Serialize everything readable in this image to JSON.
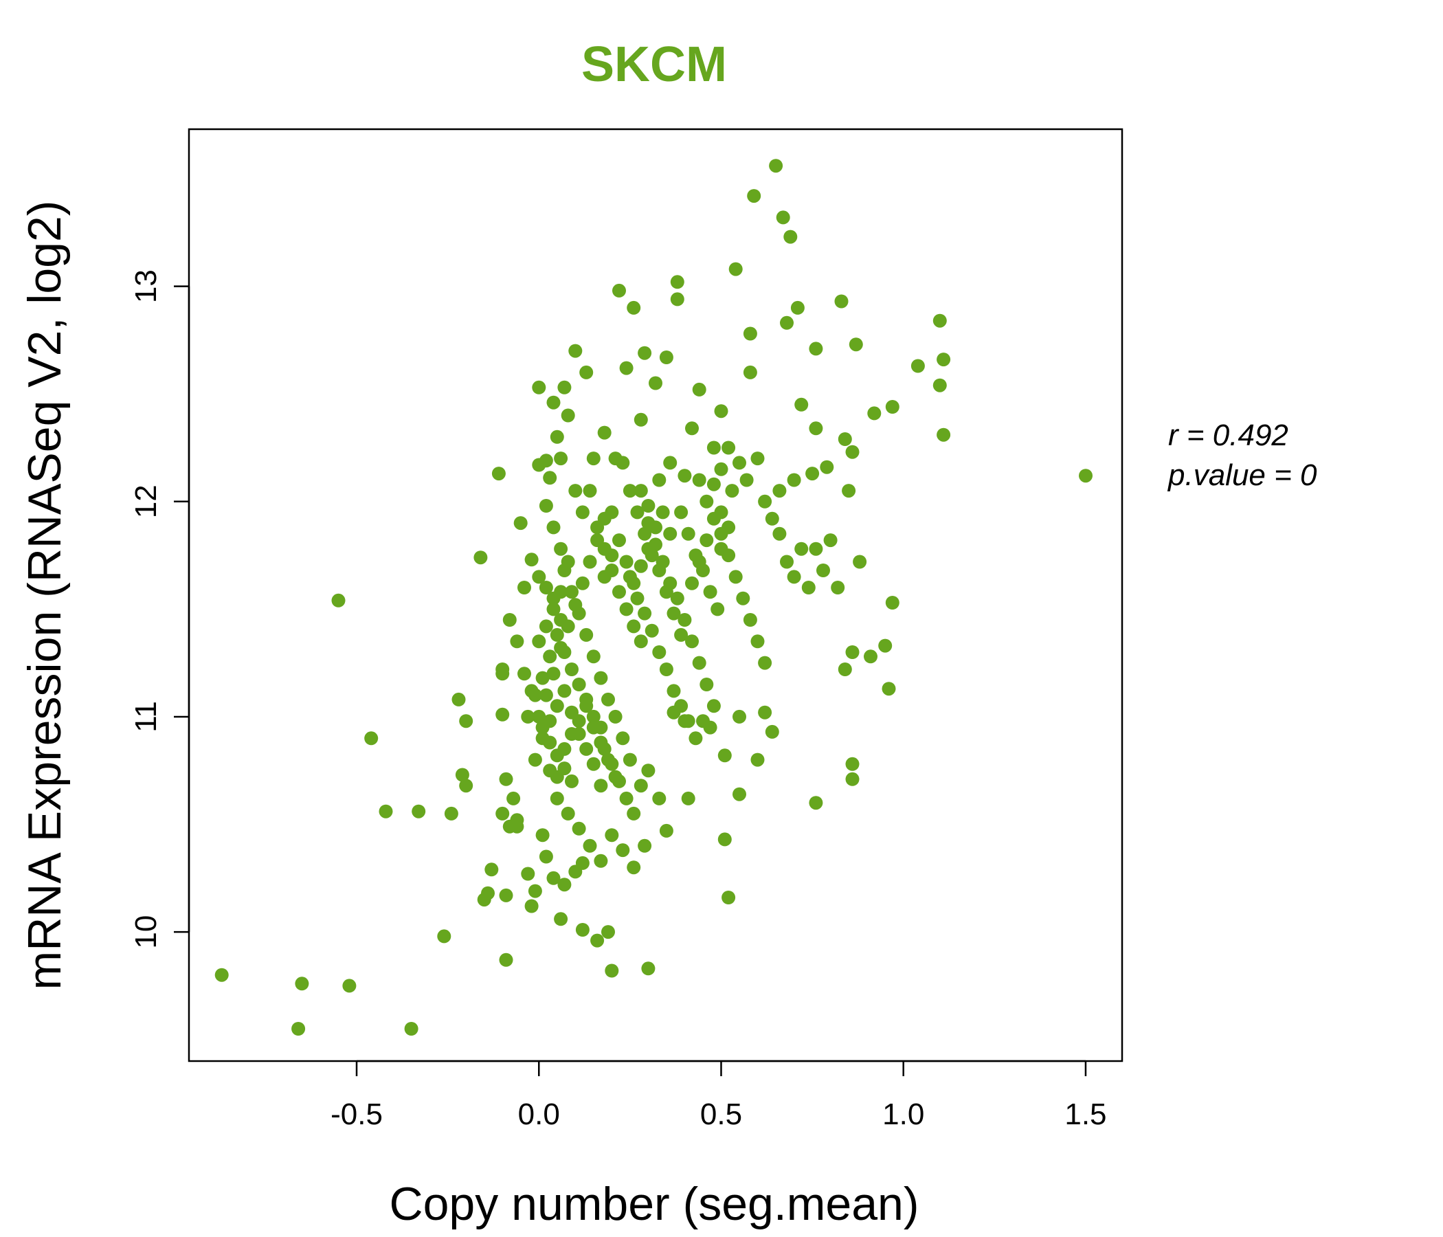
{
  "chart_data": {
    "type": "scatter",
    "title": "SKCM",
    "title_color": "#66a61e",
    "point_color": "#66a61e",
    "xlabel": "Copy number (seg.mean)",
    "ylabel": "mRNA Expression (RNASeq V2, log2)",
    "xlim": [
      -0.96,
      1.6
    ],
    "ylim": [
      9.4,
      13.73
    ],
    "xticks": [
      -0.5,
      0.0,
      0.5,
      1.0,
      1.5
    ],
    "xtick_labels": [
      "-0.5",
      "0.0",
      "0.5",
      "1.0",
      "1.5"
    ],
    "yticks": [
      10,
      11,
      12,
      13
    ],
    "ytick_labels": [
      "10",
      "11",
      "12",
      "13"
    ],
    "grid": false,
    "annotation": {
      "r_label": "r = 0.492",
      "p_label": "p.value = 0"
    },
    "points": [
      [
        -0.87,
        9.8
      ],
      [
        -0.65,
        9.76
      ],
      [
        -0.52,
        9.75
      ],
      [
        -0.66,
        9.55
      ],
      [
        -0.35,
        9.55
      ],
      [
        -0.26,
        9.98
      ],
      [
        -0.55,
        11.54
      ],
      [
        -0.46,
        10.9
      ],
      [
        -0.42,
        10.56
      ],
      [
        -0.33,
        10.56
      ],
      [
        -0.24,
        10.55
      ],
      [
        -0.22,
        11.08
      ],
      [
        -0.2,
        10.98
      ],
      [
        -0.21,
        10.73
      ],
      [
        -0.2,
        10.68
      ],
      [
        -0.16,
        11.74
      ],
      [
        -0.15,
        10.15
      ],
      [
        -0.14,
        10.18
      ],
      [
        -0.13,
        10.29
      ],
      [
        -0.11,
        12.13
      ],
      [
        -0.1,
        11.01
      ],
      [
        -0.1,
        10.55
      ],
      [
        -0.09,
        10.17
      ],
      [
        -0.09,
        9.87
      ],
      [
        -0.09,
        10.71
      ],
      [
        -0.08,
        10.49
      ],
      [
        -0.07,
        10.62
      ],
      [
        -0.06,
        10.49
      ],
      [
        -0.06,
        10.52
      ],
      [
        -0.05,
        11.9
      ],
      [
        -0.04,
        11.6
      ],
      [
        -0.03,
        10.27
      ],
      [
        -0.02,
        11.73
      ],
      [
        -0.02,
        10.12
      ],
      [
        -0.01,
        10.19
      ],
      [
        0.0,
        12.53
      ],
      [
        0.01,
        10.45
      ],
      [
        0.02,
        12.19
      ],
      [
        0.03,
        12.11
      ],
      [
        0.04,
        12.46
      ],
      [
        0.05,
        12.3
      ],
      [
        0.06,
        12.2
      ],
      [
        0.07,
        12.53
      ],
      [
        0.08,
        12.4
      ],
      [
        0.1,
        12.7
      ],
      [
        0.13,
        12.6
      ],
      [
        0.15,
        12.2
      ],
      [
        0.18,
        12.32
      ],
      [
        0.2,
        11.95
      ],
      [
        0.22,
        12.98
      ],
      [
        0.24,
        12.62
      ],
      [
        0.26,
        12.9
      ],
      [
        0.28,
        12.38
      ],
      [
        0.29,
        12.69
      ],
      [
        0.32,
        12.55
      ],
      [
        0.35,
        12.67
      ],
      [
        0.38,
        13.02
      ],
      [
        0.38,
        12.94
      ],
      [
        0.4,
        12.12
      ],
      [
        0.42,
        12.34
      ],
      [
        0.44,
        12.52
      ],
      [
        0.48,
        12.25
      ],
      [
        0.5,
        12.42
      ],
      [
        0.53,
        12.05
      ],
      [
        0.54,
        13.08
      ],
      [
        0.58,
        12.6
      ],
      [
        0.58,
        12.78
      ],
      [
        0.59,
        13.42
      ],
      [
        0.65,
        13.56
      ],
      [
        0.66,
        12.05
      ],
      [
        0.67,
        13.32
      ],
      [
        0.68,
        12.83
      ],
      [
        0.69,
        13.23
      ],
      [
        0.7,
        12.1
      ],
      [
        0.71,
        12.9
      ],
      [
        0.72,
        12.45
      ],
      [
        0.75,
        12.13
      ],
      [
        0.76,
        12.34
      ],
      [
        0.76,
        12.71
      ],
      [
        0.79,
        12.16
      ],
      [
        0.83,
        12.93
      ],
      [
        0.84,
        12.29
      ],
      [
        0.85,
        12.05
      ],
      [
        0.86,
        12.23
      ],
      [
        0.87,
        12.73
      ],
      [
        0.92,
        12.41
      ],
      [
        0.97,
        12.44
      ],
      [
        1.04,
        12.63
      ],
      [
        1.1,
        12.84
      ],
      [
        1.1,
        12.54
      ],
      [
        1.11,
        12.66
      ],
      [
        1.11,
        12.31
      ],
      [
        1.5,
        12.12
      ],
      [
        0.0,
        11.65
      ],
      [
        0.02,
        11.6
      ],
      [
        0.04,
        11.55
      ],
      [
        0.06,
        11.45
      ],
      [
        0.07,
        11.3
      ],
      [
        0.09,
        11.22
      ],
      [
        0.11,
        11.15
      ],
      [
        0.13,
        11.08
      ],
      [
        0.15,
        11.0
      ],
      [
        0.17,
        10.95
      ],
      [
        0.18,
        10.85
      ],
      [
        0.2,
        10.78
      ],
      [
        0.22,
        10.7
      ],
      [
        0.24,
        10.62
      ],
      [
        0.26,
        10.55
      ],
      [
        0.01,
        10.95
      ],
      [
        0.03,
        10.88
      ],
      [
        0.05,
        10.82
      ],
      [
        0.07,
        10.76
      ],
      [
        0.09,
        10.7
      ],
      [
        0.0,
        11.0
      ],
      [
        0.02,
        11.1
      ],
      [
        0.04,
        11.2
      ],
      [
        0.06,
        11.32
      ],
      [
        0.08,
        11.42
      ],
      [
        0.1,
        11.52
      ],
      [
        0.12,
        11.62
      ],
      [
        0.14,
        11.72
      ],
      [
        0.16,
        11.82
      ],
      [
        0.18,
        11.92
      ],
      [
        0.05,
        10.62
      ],
      [
        0.08,
        10.55
      ],
      [
        0.11,
        10.48
      ],
      [
        0.14,
        10.4
      ],
      [
        0.17,
        10.33
      ],
      [
        0.2,
        10.45
      ],
      [
        0.23,
        10.38
      ],
      [
        0.26,
        10.3
      ],
      [
        0.29,
        10.4
      ],
      [
        0.19,
        10.0
      ],
      [
        0.2,
        9.82
      ],
      [
        0.3,
        9.83
      ],
      [
        0.06,
        10.06
      ],
      [
        0.12,
        10.01
      ],
      [
        0.16,
        9.96
      ],
      [
        0.07,
        10.22
      ],
      [
        0.1,
        10.28
      ],
      [
        0.12,
        10.32
      ],
      [
        0.02,
        10.35
      ],
      [
        0.04,
        10.25
      ],
      [
        0.25,
        11.65
      ],
      [
        0.27,
        11.55
      ],
      [
        0.29,
        11.48
      ],
      [
        0.31,
        11.4
      ],
      [
        0.33,
        11.3
      ],
      [
        0.35,
        11.22
      ],
      [
        0.37,
        11.12
      ],
      [
        0.39,
        11.05
      ],
      [
        0.41,
        10.98
      ],
      [
        0.43,
        10.9
      ],
      [
        0.3,
        11.9
      ],
      [
        0.32,
        11.8
      ],
      [
        0.34,
        11.72
      ],
      [
        0.36,
        11.62
      ],
      [
        0.38,
        11.55
      ],
      [
        0.4,
        11.45
      ],
      [
        0.42,
        11.35
      ],
      [
        0.44,
        11.25
      ],
      [
        0.46,
        11.15
      ],
      [
        0.48,
        11.05
      ],
      [
        0.28,
        12.05
      ],
      [
        0.3,
        11.98
      ],
      [
        0.33,
        12.1
      ],
      [
        0.36,
        12.18
      ],
      [
        0.39,
        11.95
      ],
      [
        0.41,
        11.85
      ],
      [
        0.43,
        11.75
      ],
      [
        0.45,
        11.68
      ],
      [
        0.47,
        11.58
      ],
      [
        0.49,
        11.5
      ],
      [
        0.5,
        11.85
      ],
      [
        0.52,
        11.75
      ],
      [
        0.54,
        11.65
      ],
      [
        0.56,
        11.55
      ],
      [
        0.58,
        11.45
      ],
      [
        0.6,
        11.35
      ],
      [
        0.62,
        11.25
      ],
      [
        0.5,
        12.15
      ],
      [
        0.52,
        12.25
      ],
      [
        0.55,
        12.18
      ],
      [
        0.57,
        12.1
      ],
      [
        0.6,
        12.2
      ],
      [
        0.62,
        12.0
      ],
      [
        0.64,
        11.92
      ],
      [
        0.66,
        11.85
      ],
      [
        0.68,
        11.72
      ],
      [
        0.7,
        11.65
      ],
      [
        0.72,
        11.78
      ],
      [
        0.74,
        11.6
      ],
      [
        0.76,
        11.78
      ],
      [
        0.78,
        11.68
      ],
      [
        0.8,
        11.82
      ],
      [
        0.82,
        11.6
      ],
      [
        0.84,
        11.22
      ],
      [
        0.86,
        11.3
      ],
      [
        0.88,
        11.72
      ],
      [
        0.91,
        11.28
      ],
      [
        0.95,
        11.33
      ],
      [
        0.96,
        11.13
      ],
      [
        0.97,
        11.53
      ],
      [
        0.86,
        10.78
      ],
      [
        0.86,
        10.71
      ],
      [
        0.76,
        10.6
      ],
      [
        0.64,
        10.93
      ],
      [
        0.62,
        11.02
      ],
      [
        0.6,
        10.8
      ],
      [
        0.55,
        11.0
      ],
      [
        0.55,
        10.64
      ],
      [
        0.52,
        10.16
      ],
      [
        0.51,
        10.43
      ],
      [
        0.51,
        10.82
      ],
      [
        0.47,
        10.95
      ],
      [
        0.45,
        10.98
      ],
      [
        0.41,
        10.62
      ],
      [
        0.4,
        10.98
      ],
      [
        0.37,
        11.02
      ],
      [
        0.35,
        10.47
      ],
      [
        0.33,
        10.62
      ],
      [
        0.3,
        10.75
      ],
      [
        0.28,
        10.68
      ],
      [
        0.25,
        10.8
      ],
      [
        0.23,
        10.9
      ],
      [
        0.21,
        11.0
      ],
      [
        0.19,
        11.08
      ],
      [
        0.17,
        11.18
      ],
      [
        0.15,
        11.28
      ],
      [
        0.13,
        11.38
      ],
      [
        0.11,
        11.48
      ],
      [
        0.09,
        11.58
      ],
      [
        0.07,
        11.68
      ],
      [
        -0.02,
        11.12
      ],
      [
        -0.04,
        11.2
      ],
      [
        -0.06,
        11.35
      ],
      [
        -0.08,
        11.45
      ],
      [
        -0.1,
        11.2
      ],
      [
        -0.1,
        11.22
      ],
      [
        0.0,
        11.35
      ],
      [
        0.02,
        11.42
      ],
      [
        0.04,
        11.5
      ],
      [
        0.06,
        11.58
      ],
      [
        0.0,
        12.17
      ],
      [
        0.02,
        11.98
      ],
      [
        0.04,
        11.88
      ],
      [
        0.06,
        11.78
      ],
      [
        0.08,
        11.72
      ],
      [
        0.1,
        12.05
      ],
      [
        0.12,
        11.95
      ],
      [
        0.14,
        12.05
      ],
      [
        0.16,
        11.88
      ],
      [
        0.18,
        11.78
      ],
      [
        0.2,
        11.68
      ],
      [
        0.22,
        11.58
      ],
      [
        0.24,
        11.5
      ],
      [
        0.26,
        11.42
      ],
      [
        0.28,
        11.35
      ],
      [
        0.21,
        12.2
      ],
      [
        0.23,
        12.18
      ],
      [
        0.25,
        12.05
      ],
      [
        0.27,
        11.95
      ],
      [
        0.29,
        11.85
      ],
      [
        0.31,
        11.75
      ],
      [
        0.33,
        11.68
      ],
      [
        0.35,
        11.58
      ],
      [
        0.37,
        11.48
      ],
      [
        0.39,
        11.38
      ],
      [
        0.03,
        10.75
      ],
      [
        0.05,
        10.72
      ],
      [
        0.07,
        10.85
      ],
      [
        0.09,
        10.92
      ],
      [
        0.11,
        10.98
      ],
      [
        0.13,
        11.05
      ],
      [
        0.15,
        10.95
      ],
      [
        0.17,
        10.88
      ],
      [
        0.19,
        10.8
      ],
      [
        0.21,
        10.72
      ],
      [
        -0.01,
        10.8
      ],
      [
        0.01,
        10.9
      ],
      [
        0.03,
        10.98
      ],
      [
        0.05,
        11.05
      ],
      [
        0.07,
        11.12
      ],
      [
        0.09,
        11.02
      ],
      [
        0.11,
        10.92
      ],
      [
        0.13,
        10.85
      ],
      [
        0.15,
        10.78
      ],
      [
        0.17,
        10.68
      ],
      [
        -0.03,
        11.0
      ],
      [
        -0.01,
        11.1
      ],
      [
        0.01,
        11.18
      ],
      [
        0.03,
        11.28
      ],
      [
        0.05,
        11.38
      ],
      [
        0.42,
        11.62
      ],
      [
        0.44,
        11.72
      ],
      [
        0.46,
        11.82
      ],
      [
        0.48,
        11.92
      ],
      [
        0.5,
        11.78
      ],
      [
        0.44,
        12.1
      ],
      [
        0.46,
        12.0
      ],
      [
        0.48,
        12.08
      ],
      [
        0.5,
        11.95
      ],
      [
        0.52,
        11.88
      ],
      [
        0.36,
        11.85
      ],
      [
        0.34,
        11.95
      ],
      [
        0.32,
        11.88
      ],
      [
        0.3,
        11.78
      ],
      [
        0.28,
        11.7
      ],
      [
        0.26,
        11.62
      ],
      [
        0.24,
        11.72
      ],
      [
        0.22,
        11.82
      ],
      [
        0.2,
        11.75
      ],
      [
        0.18,
        11.65
      ]
    ]
  }
}
